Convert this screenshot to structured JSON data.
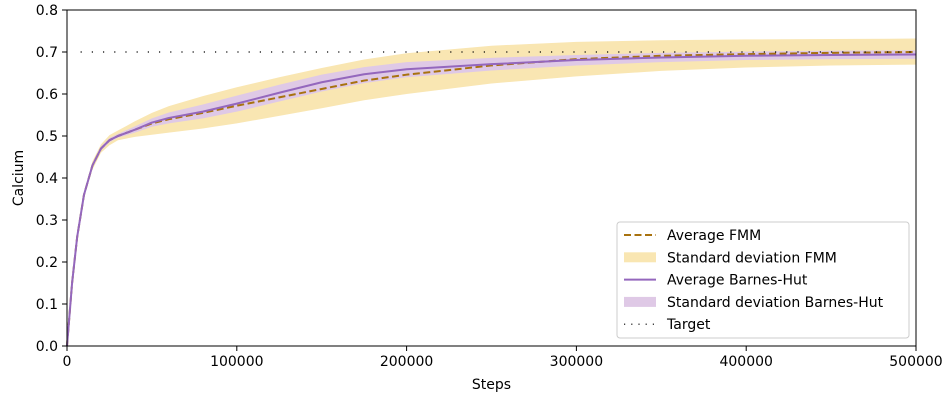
{
  "chart_data": {
    "type": "line",
    "title": "",
    "xlabel": "Steps",
    "ylabel": "Calcium",
    "xlim": [
      0,
      500000
    ],
    "ylim": [
      0.0,
      0.8
    ],
    "xticks": [
      0,
      100000,
      200000,
      300000,
      400000,
      500000
    ],
    "xtick_labels": [
      "0",
      "100000",
      "200000",
      "300000",
      "400000",
      "500000"
    ],
    "yticks": [
      0.0,
      0.1,
      0.2,
      0.3,
      0.4,
      0.5,
      0.6,
      0.7,
      0.8
    ],
    "ytick_labels": [
      "0.0",
      "0.1",
      "0.2",
      "0.3",
      "0.4",
      "0.5",
      "0.6",
      "0.7",
      "0.8"
    ],
    "grid": false,
    "legend_position": "lower-right",
    "x": [
      0,
      3000,
      6000,
      10000,
      15000,
      20000,
      25000,
      30000,
      40000,
      50000,
      60000,
      80000,
      100000,
      125000,
      150000,
      175000,
      200000,
      250000,
      300000,
      350000,
      400000,
      450000,
      500000
    ],
    "series": [
      {
        "name": "Average FMM",
        "kind": "line",
        "style": "dashed",
        "color": "#a8720f",
        "values": [
          0.0,
          0.15,
          0.26,
          0.36,
          0.43,
          0.47,
          0.49,
          0.5,
          0.515,
          0.53,
          0.54,
          0.555,
          0.572,
          0.592,
          0.612,
          0.632,
          0.646,
          0.668,
          0.683,
          0.691,
          0.695,
          0.698,
          0.7
        ]
      },
      {
        "name": "Standard deviation FMM",
        "kind": "band",
        "color": "#f9e6b2",
        "lower": [
          0.0,
          0.15,
          0.26,
          0.355,
          0.42,
          0.46,
          0.478,
          0.49,
          0.498,
          0.503,
          0.508,
          0.518,
          0.53,
          0.548,
          0.566,
          0.585,
          0.6,
          0.625,
          0.642,
          0.655,
          0.663,
          0.668,
          0.67
        ],
        "upper": [
          0.0,
          0.15,
          0.26,
          0.365,
          0.44,
          0.48,
          0.502,
          0.513,
          0.535,
          0.555,
          0.571,
          0.595,
          0.616,
          0.64,
          0.662,
          0.682,
          0.697,
          0.715,
          0.724,
          0.728,
          0.73,
          0.731,
          0.732
        ]
      },
      {
        "name": "Average Barnes-Hut",
        "kind": "line",
        "style": "solid",
        "color": "#9467bd",
        "values": [
          0.0,
          0.15,
          0.26,
          0.36,
          0.43,
          0.47,
          0.49,
          0.5,
          0.515,
          0.532,
          0.543,
          0.558,
          0.577,
          0.603,
          0.628,
          0.647,
          0.659,
          0.671,
          0.681,
          0.687,
          0.691,
          0.693,
          0.694
        ]
      },
      {
        "name": "Standard deviation Barnes-Hut",
        "kind": "band",
        "color": "#dfc9e6",
        "lower": [
          0.0,
          0.15,
          0.26,
          0.357,
          0.425,
          0.465,
          0.485,
          0.496,
          0.508,
          0.522,
          0.53,
          0.542,
          0.558,
          0.582,
          0.606,
          0.626,
          0.64,
          0.656,
          0.668,
          0.676,
          0.681,
          0.683,
          0.684
        ],
        "upper": [
          0.0,
          0.15,
          0.26,
          0.363,
          0.435,
          0.475,
          0.495,
          0.505,
          0.523,
          0.542,
          0.556,
          0.575,
          0.596,
          0.622,
          0.646,
          0.664,
          0.676,
          0.686,
          0.693,
          0.698,
          0.701,
          0.703,
          0.704
        ]
      },
      {
        "name": "Target",
        "kind": "line",
        "style": "dotted",
        "color": "#000000",
        "x_range": [
          8000,
          500000
        ],
        "value": 0.7
      }
    ]
  }
}
